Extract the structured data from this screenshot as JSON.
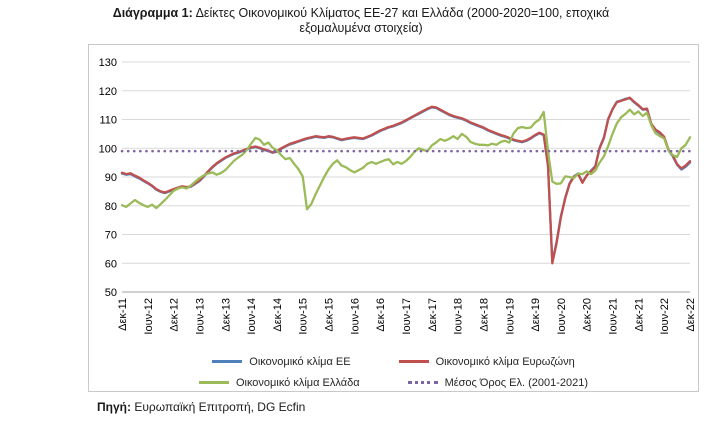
{
  "title": {
    "prefix": "Διάγραμμα 1:",
    "text": " Δείκτες Οικονομικού Κλίματος ΕΕ-27 και Ελλάδα (2000-2020=100, εποχικά εξομαλυμένα στοιχεία)"
  },
  "source": {
    "prefix": "Πηγή:",
    "text": " Ευρωπαϊκή Επιτροπή, DG Ecfin"
  },
  "chart_data": {
    "type": "line",
    "title": "Δείκτες Οικονομικού Κλίματος ΕΕ-27 και Ελλάδα (2000-2020=100, εποχικά εξομαλυμένα στοιχεία)",
    "ylim": [
      50,
      130
    ],
    "y_ticks": [
      50,
      60,
      70,
      80,
      90,
      100,
      110,
      120,
      130
    ],
    "grid": true,
    "legend_position": "bottom",
    "x_unit": "month",
    "tick_interval": 6,
    "x_tick_labels": [
      "Δεκ-11",
      "Ιουν-12",
      "Δεκ-12",
      "Ιουν-13",
      "Δεκ-13",
      "Ιουν-14",
      "Δεκ-14",
      "Ιουν-15",
      "Δεκ-15",
      "Ιουν-16",
      "Δεκ-16",
      "Ιουν-17",
      "Δεκ-17",
      "Ιουν-18",
      "Δεκ-18",
      "Ιουν-19",
      "Δεκ-19",
      "Ιουν-20",
      "Δεκ-20",
      "Ιουν-21",
      "Δεκ-21",
      "Ιουν-22",
      "Δεκ-22"
    ],
    "series": [
      {
        "name": "Οικονομικό κλίμα ΕΕ",
        "color": "#4F81BD",
        "style": "solid",
        "values": [
          91.2,
          90.8,
          91.0,
          90.2,
          89.5,
          88.6,
          87.8,
          86.8,
          85.6,
          84.8,
          84.4,
          85.0,
          85.6,
          86.1,
          86.6,
          86.3,
          86.6,
          87.6,
          88.6,
          90.1,
          91.8,
          93.3,
          94.6,
          95.6,
          96.6,
          97.3,
          98.0,
          98.4,
          99.0,
          99.6,
          100.1,
          100.4,
          100.0,
          99.4,
          99.0,
          98.4,
          98.8,
          99.8,
          100.6,
          101.3,
          101.8,
          102.3,
          102.8,
          103.3,
          103.6,
          104.0,
          103.8,
          103.6,
          104.0,
          103.8,
          103.3,
          102.8,
          103.1,
          103.4,
          103.6,
          103.4,
          103.2,
          103.8,
          104.4,
          105.2,
          106.0,
          106.6,
          107.2,
          107.6,
          108.2,
          108.8,
          109.6,
          110.4,
          111.2,
          112.0,
          112.8,
          113.6,
          114.2,
          114.0,
          113.2,
          112.4,
          111.6,
          111.0,
          110.6,
          110.2,
          109.6,
          108.8,
          108.2,
          107.6,
          107.0,
          106.2,
          105.6,
          105.0,
          104.4,
          104.0,
          103.4,
          102.8,
          102.4,
          102.1,
          102.6,
          103.4,
          104.4,
          105.2,
          104.6,
          93.8,
          60.5,
          67.5,
          76.4,
          82.8,
          87.8,
          90.2,
          91.2,
          88.2,
          90.6,
          92.2,
          93.8,
          100.2,
          103.8,
          110.2,
          113.6,
          116.2,
          116.6,
          117.2,
          117.4,
          116.0,
          114.8,
          113.4,
          113.6,
          108.2,
          106.2,
          105.2,
          103.6,
          99.2,
          97.2,
          94.2,
          92.6,
          93.6,
          95.0
        ]
      },
      {
        "name": "Οικονομικό κλίμα Ευρωζώνη",
        "color": "#C0504D",
        "style": "solid",
        "values": [
          91.5,
          91.0,
          91.3,
          90.5,
          89.8,
          88.8,
          88.0,
          87.0,
          85.8,
          85.0,
          84.6,
          85.2,
          85.8,
          86.3,
          86.8,
          86.5,
          86.8,
          87.8,
          88.8,
          90.3,
          92.0,
          93.5,
          94.8,
          95.8,
          96.8,
          97.5,
          98.2,
          98.6,
          99.2,
          99.8,
          100.3,
          100.6,
          100.2,
          99.6,
          99.2,
          98.6,
          99.0,
          100.0,
          100.8,
          101.5,
          102.0,
          102.5,
          103.0,
          103.5,
          103.8,
          104.2,
          104.0,
          103.8,
          104.2,
          104.0,
          103.5,
          103.0,
          103.3,
          103.6,
          103.8,
          103.6,
          103.4,
          104.0,
          104.6,
          105.4,
          106.2,
          106.8,
          107.4,
          107.8,
          108.4,
          109.0,
          109.8,
          110.6,
          111.4,
          112.2,
          113.0,
          113.8,
          114.4,
          114.2,
          113.4,
          112.6,
          111.8,
          111.2,
          110.8,
          110.4,
          109.8,
          109.0,
          108.4,
          107.8,
          107.2,
          106.4,
          105.8,
          105.2,
          104.6,
          104.2,
          103.6,
          103.0,
          102.6,
          102.3,
          102.8,
          103.6,
          104.6,
          105.4,
          104.8,
          94.0,
          60.0,
          67.0,
          76.0,
          82.5,
          87.5,
          90.0,
          91.0,
          88.0,
          90.5,
          92.0,
          93.5,
          100.0,
          103.5,
          110.0,
          113.5,
          116.0,
          116.5,
          117.0,
          117.6,
          116.2,
          115.0,
          113.6,
          113.8,
          108.5,
          106.5,
          105.5,
          104.0,
          99.5,
          97.5,
          94.5,
          93.0,
          94.0,
          95.5
        ]
      },
      {
        "name": "Οικονομικό κλίμα Ελλάδα",
        "color": "#9BBB59",
        "style": "solid",
        "values": [
          80.2,
          79.6,
          80.8,
          82.0,
          81.0,
          80.2,
          79.6,
          80.4,
          79.2,
          80.6,
          82.0,
          83.6,
          85.2,
          86.0,
          86.4,
          86.0,
          87.0,
          88.4,
          89.6,
          90.6,
          91.2,
          91.6,
          90.8,
          91.4,
          92.4,
          94.0,
          95.6,
          96.8,
          97.8,
          99.4,
          101.6,
          103.6,
          103.0,
          101.2,
          102.0,
          100.2,
          99.2,
          97.6,
          96.2,
          96.6,
          94.6,
          92.8,
          90.2,
          78.8,
          80.6,
          84.0,
          87.0,
          90.0,
          92.6,
          94.6,
          95.8,
          94.0,
          93.4,
          92.4,
          91.6,
          92.4,
          93.2,
          94.6,
          95.2,
          94.6,
          95.2,
          95.8,
          96.2,
          94.4,
          95.2,
          94.6,
          95.6,
          97.0,
          98.8,
          100.0,
          99.4,
          99.0,
          101.0,
          102.0,
          103.2,
          102.6,
          103.2,
          104.2,
          103.2,
          105.0,
          104.0,
          102.2,
          101.6,
          101.2,
          101.2,
          101.0,
          101.6,
          101.2,
          102.2,
          102.6,
          102.0,
          105.2,
          107.0,
          107.4,
          107.0,
          107.2,
          109.0,
          110.0,
          112.6,
          99.0,
          88.4,
          87.6,
          87.8,
          90.2,
          90.0,
          89.6,
          91.2,
          91.0,
          92.0,
          91.0,
          92.2,
          95.0,
          97.2,
          100.8,
          105.0,
          108.6,
          110.8,
          112.0,
          113.4,
          111.8,
          112.8,
          111.2,
          112.4,
          108.0,
          105.2,
          104.2,
          103.4,
          99.2,
          97.6,
          97.0,
          100.0,
          101.2,
          103.8
        ]
      },
      {
        "name": "Μέσος Όρος Ελ. (2001-2021)",
        "color": "#8064A2",
        "style": "dotted",
        "constant": 99
      }
    ]
  }
}
